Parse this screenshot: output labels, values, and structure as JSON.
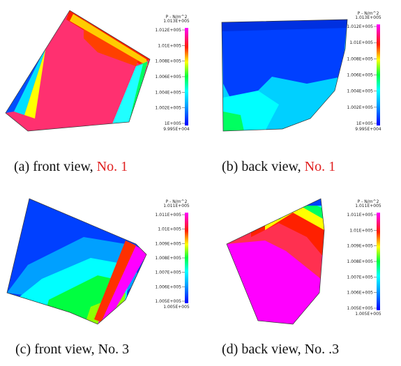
{
  "panels": [
    {
      "caption": {
        "text": "(a) front view,",
        "number": "No. 1"
      },
      "colorbar": {
        "title": "P - N/m^2",
        "max_label": "1.013E+005",
        "ticks": [
          "1.012E+005",
          "1.01E+005",
          "1.008E+005",
          "1.006E+005",
          "1.004E+005",
          "1.002E+005",
          "1E+005"
        ],
        "min_label": "9.995E+004"
      }
    },
    {
      "caption": {
        "text": "(b) back view,",
        "number": "No. 1"
      },
      "colorbar": {
        "title": "P - N/m^2",
        "max_label": "1.013E+005",
        "ticks": [
          "1.012E+005",
          "1.01E+005",
          "1.008E+005",
          "1.006E+005",
          "1.004E+005",
          "1.002E+005",
          "1E+005"
        ],
        "min_label": "9.995E+004"
      }
    },
    {
      "caption": {
        "text": "(c) front view,",
        "number": "No. 3"
      },
      "colorbar": {
        "title": "P - N/m^2",
        "max_label": "1.011E+005",
        "ticks": [
          "1.011E+005",
          "1.01E+005",
          "1.009E+005",
          "1.008E+005",
          "1.007E+005",
          "1.006E+005",
          "1.005E+005"
        ],
        "min_label": "1.005E+005"
      }
    },
    {
      "caption": {
        "text": "(d) back view,",
        "number": "No. .3"
      },
      "colorbar": {
        "title": "P - N/m^2",
        "max_label": "1.011E+005",
        "ticks": [
          "1.011E+005",
          "1.01E+005",
          "1.009E+005",
          "1.008E+005",
          "1.007E+005",
          "1.006E+005",
          "1.005E+005"
        ],
        "min_label": "1.005E+005"
      }
    }
  ]
}
